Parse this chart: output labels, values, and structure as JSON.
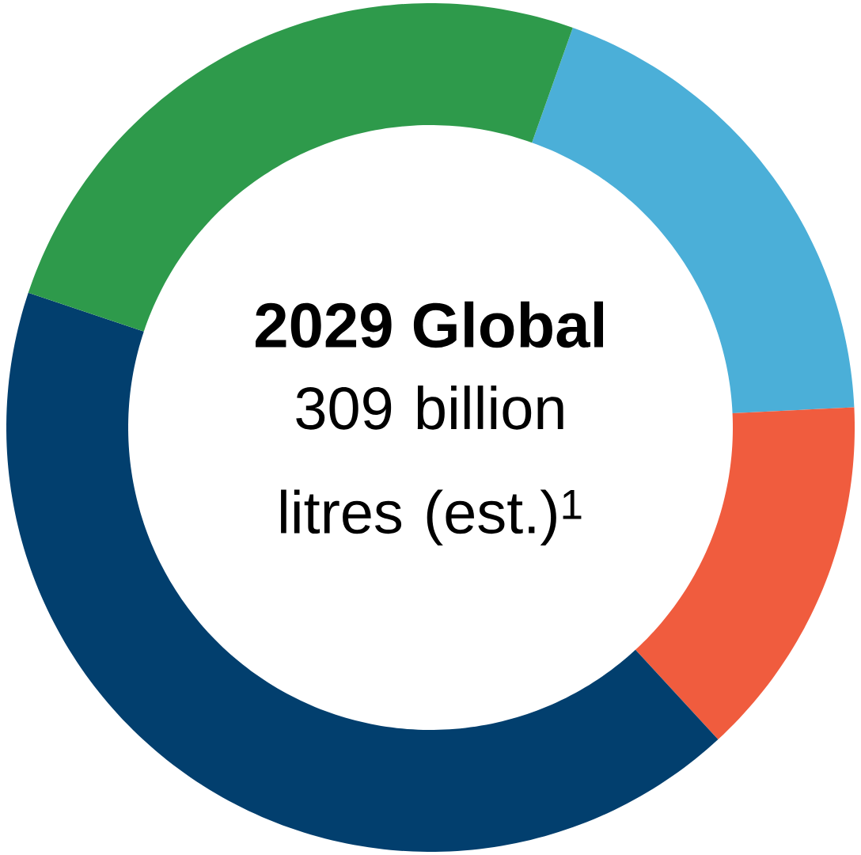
{
  "chart_data": {
    "type": "donut",
    "title": "2029 Global",
    "subtitle": "309 billion litres (est.)$^{1}$",
    "categories": [
      null,
      null,
      null,
      null
    ],
    "values": [
      18.8,
      13.9,
      42.0,
      25.3
    ],
    "colors": [
      "#4bafd8",
      "#f05c3e",
      "#023f6e",
      "#2e9a4b"
    ]
  }
}
